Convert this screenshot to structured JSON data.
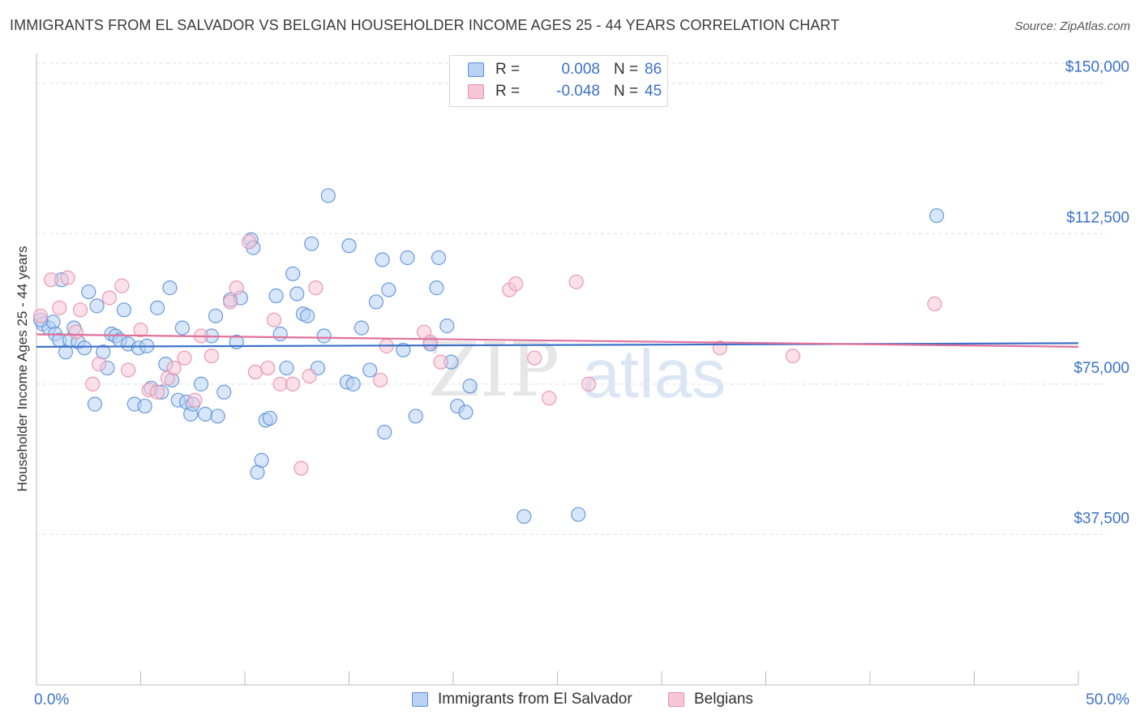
{
  "title": "IMMIGRANTS FROM EL SALVADOR VS BELGIAN HOUSEHOLDER INCOME AGES 25 - 44 YEARS CORRELATION CHART",
  "source": "Source: ZipAtlas.com",
  "watermark": {
    "zip": "ZIP",
    "atlas": "atlas"
  },
  "colors": {
    "blue": "#3b72c8",
    "blue_fill": "#b8d1f4",
    "blue_stroke": "#5b8fd8",
    "pink": "#e0709a",
    "pink_fill": "#f7c6d6",
    "pink_stroke": "#e68fb0",
    "grid": "#dddddd",
    "tick_label": "#3b72c8"
  },
  "legend": {
    "rows": [
      {
        "r_label": "R =",
        "r_value": "0.008",
        "n_label": "N =",
        "n_value": "86",
        "series": "blue"
      },
      {
        "r_label": "R =",
        "r_value": "-0.048",
        "n_label": "N =",
        "n_value": "45",
        "series": "pink"
      }
    ]
  },
  "bottom_legend": [
    {
      "label": "Immigrants from El Salvador",
      "series": "blue"
    },
    {
      "label": "Belgians",
      "series": "pink"
    }
  ],
  "chart_data": {
    "type": "scatter",
    "title": "IMMIGRANTS FROM EL SALVADOR VS BELGIAN HOUSEHOLDER INCOME AGES 25 - 44 YEARS CORRELATION CHART",
    "xlabel": "",
    "ylabel": "Householder Income Ages 25 - 44 years",
    "xlim": [
      0,
      50
    ],
    "ylim": [
      0,
      155000
    ],
    "x_tick_labels": [
      "0.0%",
      "50.0%"
    ],
    "y_ticks": [
      37500,
      75000,
      112500,
      150000
    ],
    "y_tick_labels": [
      "$37,500",
      "$75,000",
      "$112,500",
      "$150,000"
    ],
    "grid": "horizontal dashed",
    "legend_position": "top-center",
    "series": [
      {
        "name": "Immigrants from El Salvador",
        "color": "blue",
        "trend": {
          "x": [
            0,
            50
          ],
          "y": [
            84300,
            85200
          ]
        },
        "points": [
          [
            0.3,
            90000
          ],
          [
            0.6,
            89000
          ],
          [
            0.8,
            90500
          ],
          [
            0.9,
            87500
          ],
          [
            1.1,
            86000
          ],
          [
            1.2,
            101000
          ],
          [
            1.4,
            83000
          ],
          [
            1.6,
            86000
          ],
          [
            1.8,
            89000
          ],
          [
            2.0,
            85500
          ],
          [
            2.3,
            84000
          ],
          [
            2.5,
            98000
          ],
          [
            2.9,
            94500
          ],
          [
            2.8,
            70000
          ],
          [
            3.2,
            83000
          ],
          [
            3.4,
            79000
          ],
          [
            3.6,
            87500
          ],
          [
            3.8,
            87000
          ],
          [
            4.0,
            86000
          ],
          [
            4.2,
            93500
          ],
          [
            4.4,
            85000
          ],
          [
            4.7,
            70000
          ],
          [
            4.9,
            84000
          ],
          [
            5.2,
            69500
          ],
          [
            5.3,
            84500
          ],
          [
            5.5,
            74000
          ],
          [
            5.8,
            94000
          ],
          [
            6.0,
            73000
          ],
          [
            6.2,
            80000
          ],
          [
            6.4,
            99000
          ],
          [
            6.5,
            76000
          ],
          [
            6.8,
            71000
          ],
          [
            7.0,
            89000
          ],
          [
            7.2,
            70500
          ],
          [
            7.4,
            67500
          ],
          [
            7.5,
            70000
          ],
          [
            7.9,
            75000
          ],
          [
            8.1,
            67500
          ],
          [
            8.4,
            87000
          ],
          [
            8.6,
            92000
          ],
          [
            8.7,
            67000
          ],
          [
            9.0,
            73000
          ],
          [
            9.3,
            96000
          ],
          [
            9.6,
            85500
          ],
          [
            9.8,
            96500
          ],
          [
            10.3,
            111000
          ],
          [
            10.4,
            109000
          ],
          [
            10.6,
            53000
          ],
          [
            10.8,
            56000
          ],
          [
            11.0,
            66000
          ],
          [
            11.2,
            66500
          ],
          [
            11.5,
            97000
          ],
          [
            11.7,
            87500
          ],
          [
            12.0,
            79000
          ],
          [
            12.3,
            102500
          ],
          [
            12.5,
            97500
          ],
          [
            12.8,
            92500
          ],
          [
            13.0,
            92000
          ],
          [
            13.2,
            110000
          ],
          [
            13.5,
            79000
          ],
          [
            13.8,
            87000
          ],
          [
            14.0,
            122000
          ],
          [
            14.9,
            75500
          ],
          [
            15.0,
            109500
          ],
          [
            15.2,
            75000
          ],
          [
            15.6,
            89000
          ],
          [
            16.0,
            78500
          ],
          [
            16.3,
            95500
          ],
          [
            16.6,
            106000
          ],
          [
            16.7,
            63000
          ],
          [
            16.9,
            98500
          ],
          [
            17.6,
            83500
          ],
          [
            17.8,
            106500
          ],
          [
            18.2,
            67000
          ],
          [
            18.9,
            85000
          ],
          [
            19.3,
            106500
          ],
          [
            19.2,
            99000
          ],
          [
            19.7,
            89500
          ],
          [
            19.9,
            80500
          ],
          [
            20.2,
            69500
          ],
          [
            20.6,
            68000
          ],
          [
            20.8,
            74500
          ],
          [
            23.4,
            42000
          ],
          [
            26.0,
            42500
          ],
          [
            43.2,
            117000
          ],
          [
            0.2,
            91000
          ]
        ]
      },
      {
        "name": "Belgians",
        "color": "pink",
        "trend": {
          "x": [
            0,
            50
          ],
          "y": [
            87400,
            84300
          ]
        },
        "points": [
          [
            0.2,
            92000
          ],
          [
            0.7,
            101000
          ],
          [
            1.1,
            94000
          ],
          [
            1.5,
            101500
          ],
          [
            1.9,
            88000
          ],
          [
            2.1,
            93500
          ],
          [
            2.7,
            75000
          ],
          [
            3.0,
            80000
          ],
          [
            3.5,
            96500
          ],
          [
            4.1,
            99500
          ],
          [
            4.4,
            78500
          ],
          [
            5.0,
            88500
          ],
          [
            5.4,
            73500
          ],
          [
            5.8,
            73000
          ],
          [
            6.3,
            76500
          ],
          [
            6.6,
            79000
          ],
          [
            7.1,
            81500
          ],
          [
            7.6,
            71000
          ],
          [
            7.9,
            87000
          ],
          [
            8.4,
            82000
          ],
          [
            9.3,
            95500
          ],
          [
            9.6,
            99000
          ],
          [
            10.2,
            110500
          ],
          [
            10.5,
            78000
          ],
          [
            11.1,
            79000
          ],
          [
            11.4,
            91000
          ],
          [
            11.7,
            75000
          ],
          [
            12.3,
            75000
          ],
          [
            12.7,
            54000
          ],
          [
            13.1,
            77000
          ],
          [
            13.4,
            99000
          ],
          [
            16.5,
            76000
          ],
          [
            16.8,
            84500
          ],
          [
            18.6,
            88000
          ],
          [
            18.9,
            85500
          ],
          [
            19.4,
            80500
          ],
          [
            22.7,
            98500
          ],
          [
            23.0,
            100000
          ],
          [
            23.9,
            81500
          ],
          [
            24.6,
            71500
          ],
          [
            25.9,
            100500
          ],
          [
            26.5,
            75000
          ],
          [
            32.8,
            84000
          ],
          [
            36.3,
            82000
          ],
          [
            43.1,
            95000
          ]
        ]
      }
    ]
  }
}
